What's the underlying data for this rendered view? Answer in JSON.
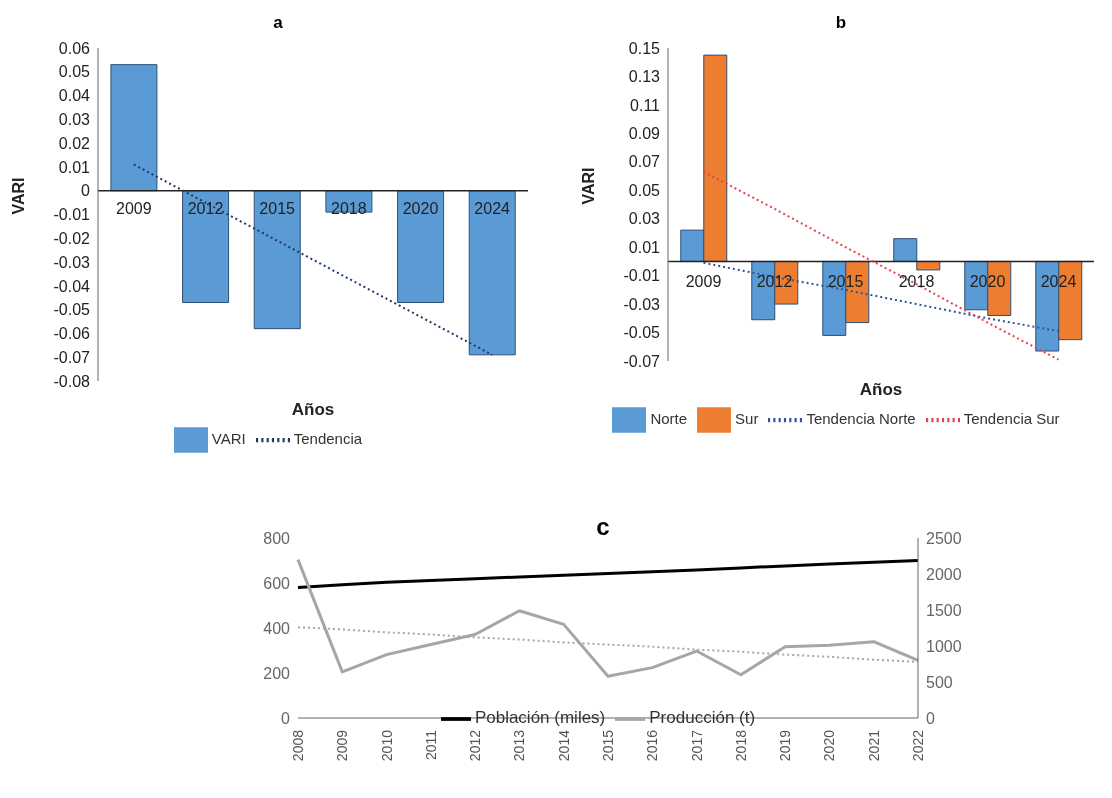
{
  "chart_data": [
    {
      "type": "bar",
      "title": "a",
      "xlabel": "Años",
      "ylabel": "VARI",
      "categories": [
        "2009",
        "2012",
        "2015",
        "2018",
        "2020",
        "2024"
      ],
      "ylim": [
        -0.08,
        0.06
      ],
      "yticks": [
        -0.08,
        -0.07,
        -0.06,
        -0.05,
        -0.04,
        -0.03,
        -0.02,
        -0.01,
        0,
        0.01,
        0.02,
        0.03,
        0.04,
        0.05,
        0.06
      ],
      "grid": false,
      "legend": "bottom",
      "marker": "none",
      "series": [
        {
          "name": "VARI",
          "color": "#5b9bd5",
          "values": [
            0.053,
            -0.047,
            -0.058,
            -0.009,
            -0.047,
            -0.069
          ]
        },
        {
          "name": "Tendencia",
          "type": "line",
          "line_style": "dotted",
          "color": "#1f3864",
          "values": [
            0.011,
            -0.005,
            -0.021,
            -0.037,
            -0.053,
            -0.069
          ]
        }
      ]
    },
    {
      "type": "bar",
      "title": "b",
      "xlabel": "Años",
      "ylabel": "VARI",
      "categories": [
        "2009",
        "2012",
        "2015",
        "2018",
        "2020",
        "2024"
      ],
      "ylim": [
        -0.07,
        0.15
      ],
      "yticks": [
        -0.07,
        -0.05,
        -0.03,
        -0.01,
        0.01,
        0.03,
        0.05,
        0.07,
        0.09,
        0.11,
        0.13,
        0.15
      ],
      "grid": false,
      "legend": "bottom",
      "marker": "none",
      "series": [
        {
          "name": "Norte",
          "color": "#5b9bd5",
          "values": [
            0.022,
            -0.041,
            -0.052,
            0.016,
            -0.034,
            -0.063
          ]
        },
        {
          "name": "Sur",
          "color": "#ed7d31",
          "values": [
            0.145,
            -0.03,
            -0.043,
            -0.006,
            -0.038,
            -0.055
          ]
        },
        {
          "name": "Tendencia Norte",
          "type": "line",
          "line_style": "dotted",
          "color": "#2f5597",
          "values": [
            -0.001,
            -0.011,
            -0.02,
            -0.03,
            -0.04,
            -0.049
          ]
        },
        {
          "name": "Tendencia Sur",
          "type": "line",
          "line_style": "dotted",
          "color": "#e8414a",
          "values": [
            0.063,
            0.037,
            0.01,
            -0.016,
            -0.043,
            -0.069
          ]
        }
      ]
    },
    {
      "type": "line",
      "title": "c",
      "categories": [
        "2008",
        "2009",
        "2010",
        "2011",
        "2012",
        "2013",
        "2014",
        "2015",
        "2016",
        "2017",
        "2018",
        "2019",
        "2020",
        "2021",
        "2022"
      ],
      "ylim": [
        0,
        800
      ],
      "yticks": [
        0,
        200,
        400,
        600,
        800
      ],
      "y2lim": [
        0,
        2500
      ],
      "y2ticks": [
        0,
        500,
        1000,
        1500,
        2000,
        2500
      ],
      "grid": false,
      "legend": "bottom",
      "marker": "none",
      "series": [
        {
          "name": "Población (miles)",
          "line_style": "solid",
          "color": "#000000",
          "values": [
            580,
            592,
            603,
            611,
            619,
            627,
            634,
            642,
            650,
            658,
            667,
            676,
            684,
            692,
            700
          ]
        },
        {
          "name": "Producción (t)",
          "line_style": "solid",
          "axis": "y2",
          "color": "#a6a6a6",
          "values": [
            2200,
            640,
            880,
            1020,
            1160,
            1490,
            1300,
            580,
            700,
            930,
            600,
            990,
            1010,
            1060,
            800
          ]
        },
        {
          "line_style": "dotted",
          "axis": "y2",
          "color": "#a6a6a6",
          "values": [
            1260,
            1230,
            1190,
            1160,
            1120,
            1090,
            1050,
            1020,
            990,
            950,
            920,
            880,
            850,
            810,
            780
          ]
        }
      ]
    }
  ]
}
